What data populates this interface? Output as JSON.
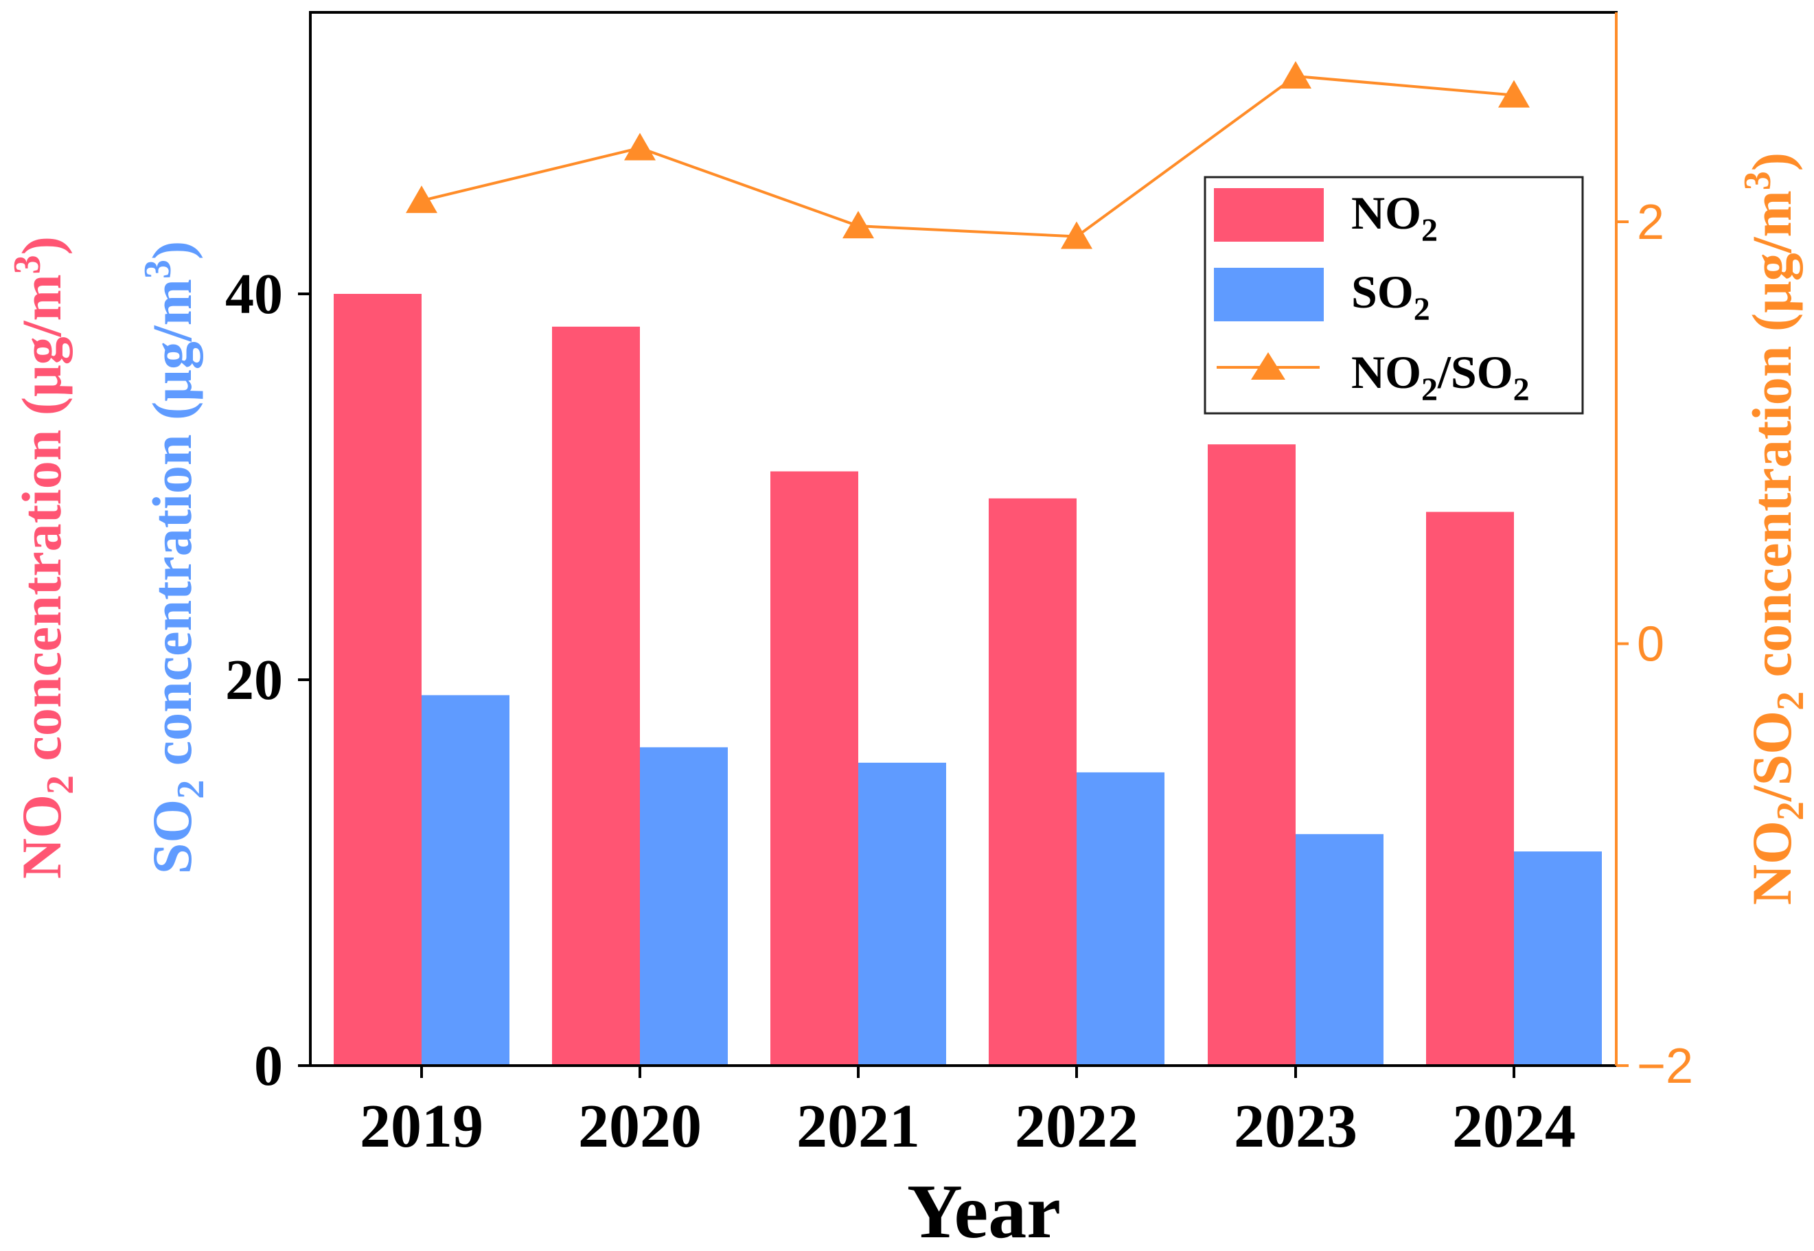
{
  "chart_data": {
    "type": "bar",
    "categories": [
      "2019",
      "2020",
      "2021",
      "2022",
      "2023",
      "2024"
    ],
    "series": [
      {
        "name": "NO2",
        "name_main": "NO",
        "name_sub": "2",
        "axis": "left",
        "kind": "bar",
        "color": "#FF5573",
        "values": [
          40.0,
          38.3,
          30.8,
          29.4,
          32.2,
          28.7
        ]
      },
      {
        "name": "SO2",
        "name_main": "SO",
        "name_sub": "2",
        "axis": "left",
        "kind": "bar",
        "color": "#5F9BFF",
        "values": [
          19.2,
          16.5,
          15.7,
          15.2,
          12.0,
          11.1
        ]
      },
      {
        "name": "NO2/SO2",
        "axis": "right",
        "kind": "line",
        "marker": "triangle",
        "color": "#FF8C28",
        "values": [
          2.1,
          2.35,
          1.98,
          1.93,
          2.69,
          2.6
        ]
      }
    ],
    "left_axis": {
      "range": [
        0,
        53
      ],
      "ticks": [
        0,
        20,
        40
      ],
      "tick_labels": [
        "0",
        "20",
        "40"
      ]
    },
    "right_axis": {
      "range": [
        -2,
        3.04
      ],
      "ticks": [
        -2,
        0,
        2
      ],
      "tick_labels": [
        "−2",
        "0",
        "2"
      ]
    },
    "xlabel": "Year",
    "ylabel_left_outer": {
      "main": "NO",
      "sub": "2",
      "rest": " concentration (μg/m",
      "sup": "3",
      "end": ")",
      "color": "#FF5573"
    },
    "ylabel_left_inner": {
      "main": "SO",
      "sub": "2",
      "rest": " concentration (μg/m",
      "sup": "3",
      "end": ")",
      "color": "#5F9BFF"
    },
    "ylabel_right": {
      "a": "NO",
      "a_sub": "2",
      "b": "/SO",
      "b_sub": "2",
      "rest": " concentration (μg/m",
      "sup": "3",
      "end": ")",
      "color": "#FF8C28"
    },
    "legend": {
      "position": "top-right",
      "entries": [
        {
          "main": "NO",
          "sub": "2"
        },
        {
          "main": "SO",
          "sub": "2"
        },
        {
          "a": "NO",
          "a_sub": "2",
          "b": "/SO",
          "b_sub": "2"
        }
      ]
    },
    "grid": false
  }
}
